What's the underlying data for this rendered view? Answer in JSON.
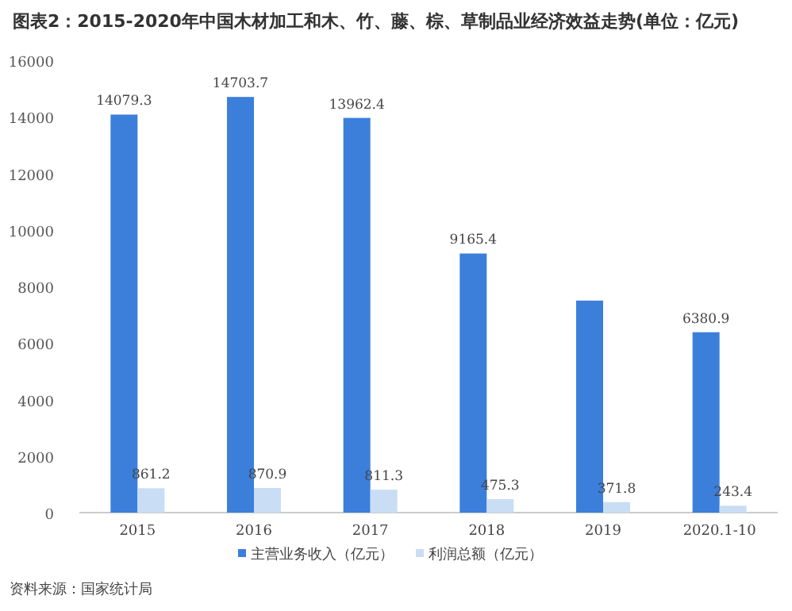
{
  "chart_data": {
    "type": "bar",
    "title": "图表2：2015-2020年中国木材加工和木、竹、藤、棕、草制品业经济效益走势(单位：亿元)",
    "categories": [
      "2015",
      "2016",
      "2017",
      "2018",
      "2019",
      "2020.1-10"
    ],
    "series": [
      {
        "name": "主营业务收入（亿元）",
        "color": "#3b7fdb",
        "values": [
          14079.3,
          14703.7,
          13962.4,
          9165.4,
          7500,
          6380.9
        ],
        "value_labels": [
          "14079.3",
          "14703.7",
          "13962.4",
          "9165.4",
          null,
          "6380.9"
        ]
      },
      {
        "name": "利润总额（亿元）",
        "color": "#c9ddf5",
        "values": [
          861.2,
          870.9,
          811.3,
          475.3,
          371.8,
          243.4
        ],
        "value_labels": [
          "861.2",
          "870.9",
          "811.3",
          "475.3",
          "371.8",
          "243.4"
        ]
      }
    ],
    "ylim": [
      0,
      16000
    ],
    "yticks": [
      0,
      2000,
      4000,
      6000,
      8000,
      10000,
      12000,
      14000,
      16000
    ],
    "grid": false,
    "legend": "bottom",
    "annotations": [
      "资料来源：国家统计局"
    ]
  }
}
